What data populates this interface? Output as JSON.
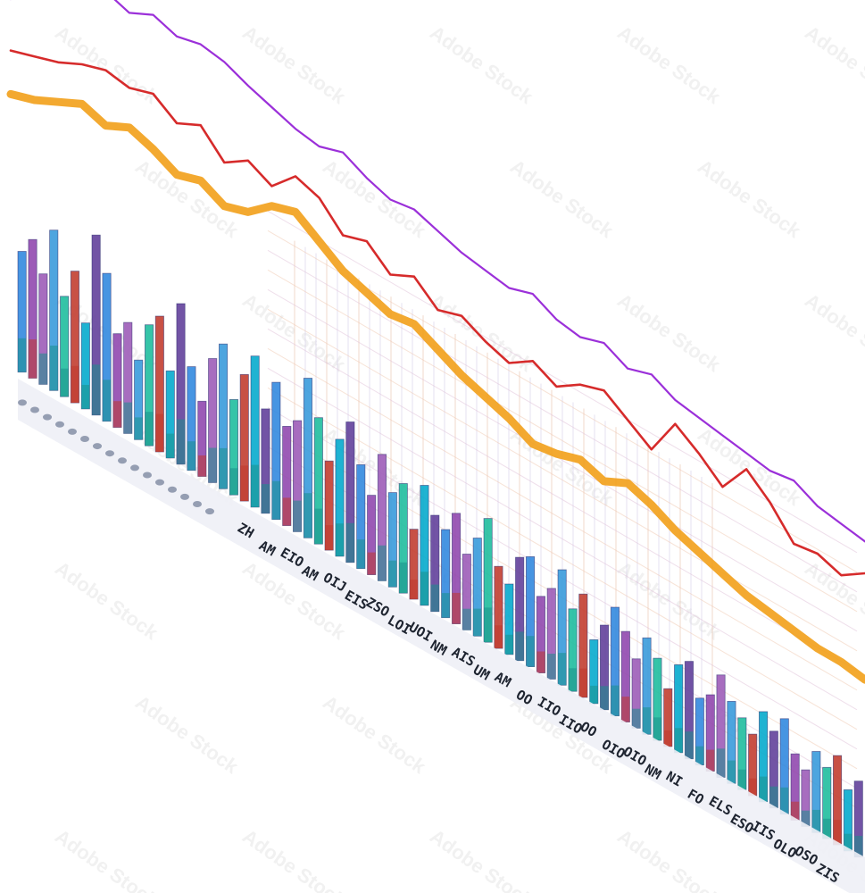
{
  "watermark": "Adobe Stock",
  "chart_data": {
    "type": "bar",
    "title": "",
    "xlabel": "",
    "ylabel": "",
    "perspective": "oblique, descending left-to-right",
    "grid": true,
    "legend": "none",
    "tick_labels": [
      "ZH",
      "AM",
      "EIO",
      "AM",
      "OIJ",
      "EIS",
      "ZSO",
      "LOI",
      "UOI",
      "NM",
      "AIS",
      "UM",
      "AM",
      "OO",
      "IIO",
      "IIO",
      "OO",
      "OIO",
      "OIO",
      "NM",
      "NI",
      "FO",
      "ELS",
      "ESO",
      "IIS",
      "OLO",
      "OSO",
      "ZIS"
    ],
    "bar_colors": [
      "#2e86de",
      "#8e44ad",
      "#9b59b6",
      "#3498db",
      "#1abc9c",
      "#c0392b",
      "#00a8cc",
      "#5e3c99"
    ],
    "bars": [
      52,
      60,
      48,
      70,
      44,
      58,
      38,
      80,
      66,
      42,
      50,
      36,
      55,
      62,
      40,
      74,
      48,
      35,
      58,
      68,
      45,
      60,
      72,
      50,
      66,
      48,
      54,
      78,
      62,
      44,
      58,
      70,
      52,
      40,
      64,
      48,
      56,
      36,
      62,
      50,
      46,
      58,
      40,
      52,
      66,
      44,
      38,
      56,
      60,
      42,
      50,
      64,
      46,
      58,
      36,
      48,
      62,
      52,
      40,
      56,
      48,
      34,
      52,
      58,
      40,
      46,
      62,
      50,
      44,
      38,
      56,
      48,
      60,
      42,
      36,
      52,
      46,
      58,
      40,
      50
    ],
    "series": [
      {
        "color": "#9b30d9",
        "values": [
          62,
          74,
          78,
          86,
          94,
          90,
          96,
          92,
          95,
          93,
          88,
          84,
          80,
          78,
          82,
          76,
          72,
          74,
          70,
          66,
          64,
          62,
          66,
          60,
          58,
          62,
          56,
          60,
          54,
          52,
          50,
          48,
          46,
          48,
          42,
          40,
          38
        ]
      },
      {
        "color": "#d62b2b",
        "values": [
          54,
          58,
          62,
          68,
          72,
          70,
          74,
          66,
          72,
          60,
          68,
          62,
          74,
          70,
          58,
          62,
          52,
          58,
          48,
          52,
          46,
          42,
          50,
          44,
          52,
          56,
          48,
          40,
          60,
          52,
          42,
          58,
          48,
          34,
          36,
          32,
          40
        ]
      },
      {
        "color": "#f2a01a",
        "values": [
          50,
          54,
          60,
          66,
          62,
          68,
          64,
          58,
          62,
          56,
          60,
          70,
          74,
          66,
          58,
          54,
          50,
          52,
          46,
          40,
          36,
          32,
          26,
          28,
          32,
          28,
          34,
          30,
          24,
          20,
          16,
          12,
          10,
          8,
          6,
          6,
          4
        ]
      }
    ]
  }
}
